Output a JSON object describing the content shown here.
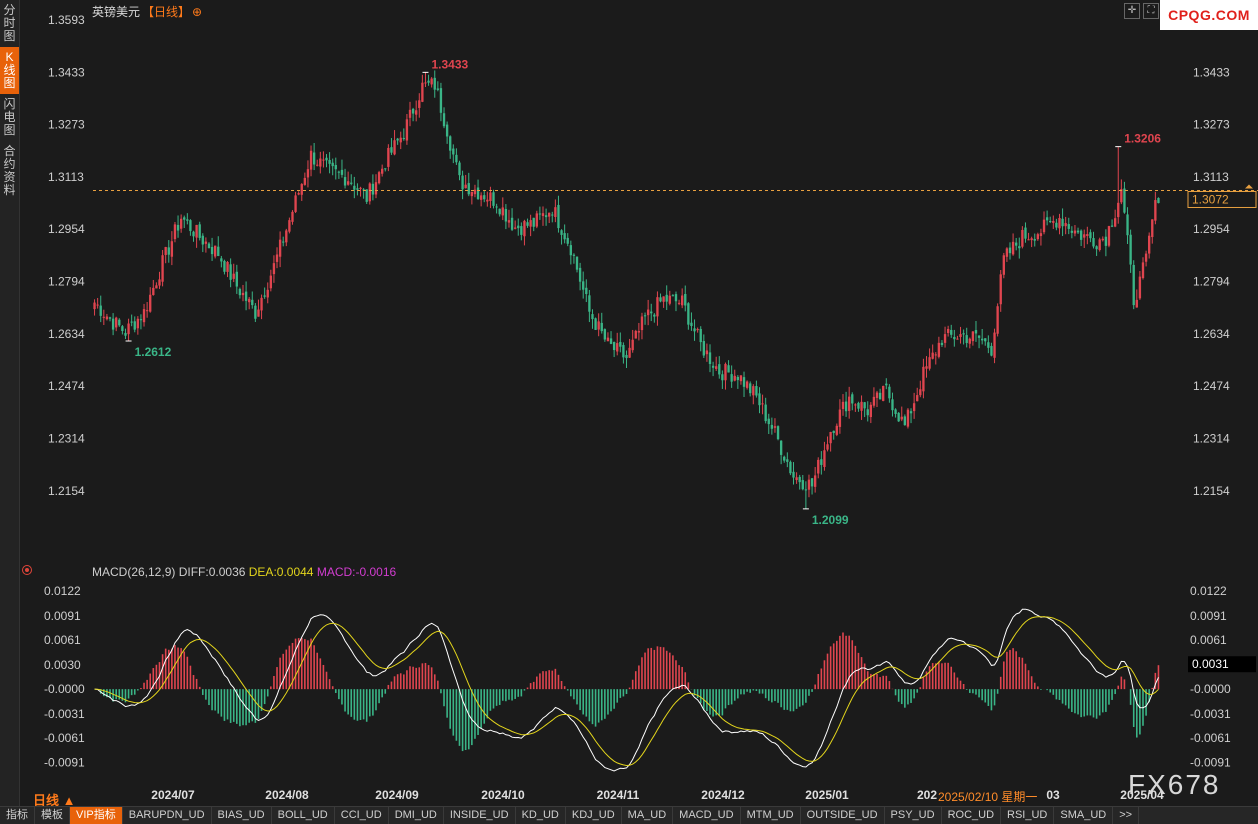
{
  "instrument": {
    "name": "英镑美元",
    "period": "【日线】",
    "plus_icon": "⊕"
  },
  "sidebar": [
    {
      "label": "分时图",
      "active": false
    },
    {
      "label": "K线图",
      "active": true
    },
    {
      "label": "闪电图",
      "active": false
    },
    {
      "label": "合约资料",
      "active": false
    }
  ],
  "logo": "CPQG.COM",
  "watermark": "FX678",
  "current_price": "1.3072",
  "macd": {
    "title": "MACD(26,12,9)",
    "diff": "DIFF:0.0036",
    "dea": "DEA:0.0044",
    "macd": "MACD:-0.0016",
    "current": "0.0031",
    "ticks": [
      "0.0122",
      "0.0091",
      "0.0061",
      "0.0030",
      "-0.0000",
      "-0.0031",
      "-0.0061",
      "-0.0091"
    ]
  },
  "price_ticks": [
    "1.3593",
    "1.3433",
    "1.3273",
    "1.3113",
    "1.2954",
    "1.2794",
    "1.2634",
    "1.2474",
    "1.2314",
    "1.2154"
  ],
  "date_labels": [
    "2024/07",
    "2024/08",
    "2024/09",
    "2024/10",
    "2024/11",
    "2024/12",
    "2025/01",
    "202",
    "03",
    "2025/04"
  ],
  "date_tooltip": "2025/02/10 星期一",
  "bottom_period": "日线 ▲",
  "bottom_tabs": [
    "指标",
    "模板",
    "VIP指标",
    "BARUPDN_UD",
    "BIAS_UD",
    "BOLL_UD",
    "CCI_UD",
    "DMI_UD",
    "INSIDE_UD",
    "KD_UD",
    "KDJ_UD",
    "MA_UD",
    "MACD_UD",
    "MTM_UD",
    "OUTSIDE_UD",
    "PSY_UD",
    "ROC_UD",
    "RSI_UD",
    "SMA_UD",
    ">>"
  ],
  "colors": {
    "up": "#e0454f",
    "down": "#3ab587",
    "diff": "#ffffff",
    "dea": "#e3d51c",
    "accent": "#e8620a"
  },
  "chart_data": [
    {
      "type": "candlestick",
      "title": "英镑美元【日线】",
      "x_labels": [
        "2024/07",
        "2024/08",
        "2024/09",
        "2024/10",
        "2024/11",
        "2024/12",
        "2025/01",
        "202",
        "03",
        "2025/04"
      ],
      "ylim": [
        1.2065,
        1.3593
      ],
      "annotations": [
        {
          "text": "1.3433",
          "value": 1.3433,
          "kind": "high"
        },
        {
          "text": "1.2612",
          "value": 1.2612,
          "kind": "low"
        },
        {
          "text": "1.2099",
          "value": 1.2099,
          "kind": "low"
        },
        {
          "text": "1.3206",
          "value": 1.3206,
          "kind": "high"
        }
      ],
      "last_price": 1.3072,
      "anchors": [
        [
          0,
          1.273
        ],
        [
          6,
          1.267
        ],
        [
          10,
          1.264
        ],
        [
          16,
          1.27
        ],
        [
          22,
          1.285
        ],
        [
          28,
          1.299
        ],
        [
          34,
          1.293
        ],
        [
          40,
          1.288
        ],
        [
          46,
          1.278
        ],
        [
          52,
          1.27
        ],
        [
          58,
          1.284
        ],
        [
          64,
          1.301
        ],
        [
          70,
          1.318
        ],
        [
          76,
          1.313
        ],
        [
          82,
          1.311
        ],
        [
          88,
          1.305
        ],
        [
          94,
          1.316
        ],
        [
          100,
          1.325
        ],
        [
          106,
          1.339
        ],
        [
          110,
          1.3395
        ],
        [
          114,
          1.326
        ],
        [
          118,
          1.31
        ],
        [
          124,
          1.307
        ],
        [
          130,
          1.304
        ],
        [
          136,
          1.296
        ],
        [
          142,
          1.297
        ],
        [
          148,
          1.302
        ],
        [
          154,
          1.29
        ],
        [
          160,
          1.27
        ],
        [
          166,
          1.26
        ],
        [
          172,
          1.256
        ],
        [
          178,
          1.268
        ],
        [
          184,
          1.274
        ],
        [
          190,
          1.273
        ],
        [
          196,
          1.26
        ],
        [
          202,
          1.252
        ],
        [
          208,
          1.251
        ],
        [
          214,
          1.244
        ],
        [
          220,
          1.233
        ],
        [
          226,
          1.22
        ],
        [
          232,
          1.217
        ],
        [
          238,
          1.234
        ],
        [
          244,
          1.244
        ],
        [
          250,
          1.24
        ],
        [
          256,
          1.246
        ],
        [
          262,
          1.235
        ],
        [
          268,
          1.251
        ],
        [
          274,
          1.262
        ],
        [
          280,
          1.263
        ],
        [
          286,
          1.262
        ],
        [
          290,
          1.259
        ],
        [
          294,
          1.286
        ],
        [
          300,
          1.293
        ],
        [
          306,
          1.295
        ],
        [
          312,
          1.299
        ],
        [
          318,
          1.294
        ],
        [
          324,
          1.292
        ],
        [
          327,
          1.293
        ],
        [
          330,
          1.301
        ],
        [
          332,
          1.308
        ],
        [
          336,
          1.274
        ],
        [
          338,
          1.279
        ],
        [
          340,
          1.286
        ],
        [
          342,
          1.298
        ],
        [
          344,
          1.306
        ]
      ],
      "extremes": [
        {
          "index": 11,
          "low": 1.2612
        },
        {
          "index": 107,
          "high": 1.3433
        },
        {
          "index": 230,
          "low": 1.2099
        },
        {
          "index": 331,
          "high": 1.3206
        }
      ]
    },
    {
      "type": "macd",
      "series": [
        {
          "name": "DIFF",
          "values": []
        },
        {
          "name": "DEA",
          "values": []
        },
        {
          "name": "MACD",
          "values": []
        }
      ],
      "ylim": [
        -0.0113,
        0.0132
      ]
    }
  ]
}
